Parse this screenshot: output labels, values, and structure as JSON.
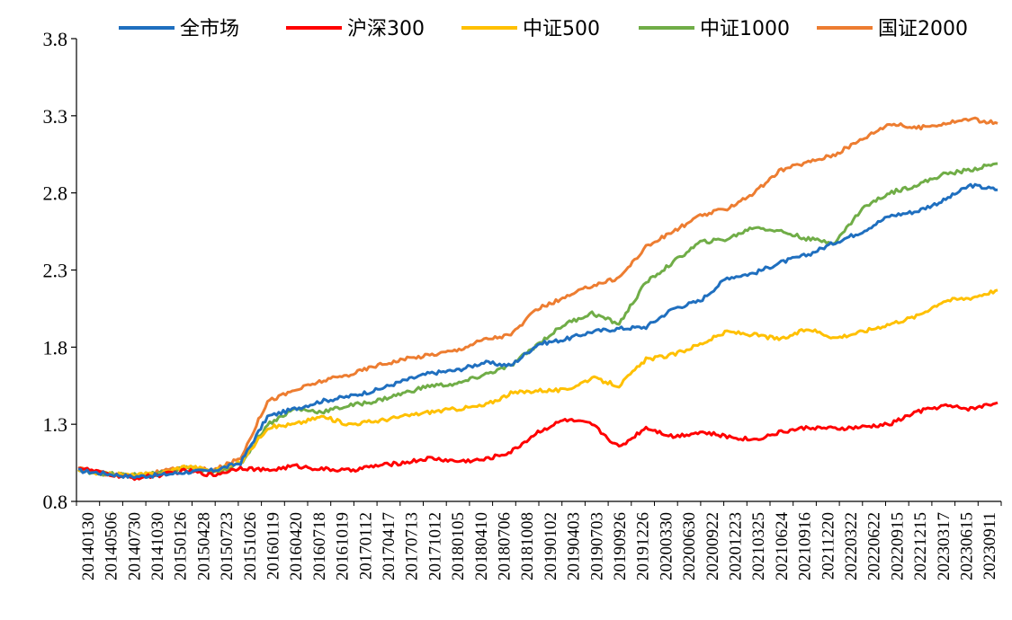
{
  "chart_data": {
    "type": "line",
    "title": "",
    "xlabel": "",
    "ylabel": "",
    "ylim": [
      0.8,
      3.8
    ],
    "yticks": [
      0.8,
      1.3,
      1.8,
      2.3,
      2.8,
      3.3,
      3.8
    ],
    "ytick_labels": [
      "0.8",
      "1.3",
      "1.8",
      "2.3",
      "2.8",
      "3.3",
      "3.8"
    ],
    "xticks": [
      "20140130",
      "20140506",
      "20140730",
      "20141030",
      "20150126",
      "20150428",
      "20150723",
      "20151026",
      "20160119",
      "20160420",
      "20160718",
      "20161019",
      "20170112",
      "20170417",
      "20170713",
      "20171012",
      "20180105",
      "20180410",
      "20180706",
      "20181008",
      "20190102",
      "20190403",
      "20190703",
      "20190926",
      "20191226",
      "20200330",
      "20200630",
      "20200922",
      "20201223",
      "20210325",
      "20210624",
      "20210916",
      "20211220",
      "20220322",
      "20220622",
      "20220915",
      "20221215",
      "20230317",
      "20230615",
      "20230911"
    ],
    "grid": false,
    "legend_position": "top",
    "series": [
      {
        "name": "全市场",
        "color": "#1F6FBF",
        "values": [
          1.0,
          0.98,
          0.96,
          0.97,
          0.99,
          1.0,
          1.05,
          1.35,
          1.4,
          1.45,
          1.48,
          1.52,
          1.58,
          1.63,
          1.65,
          1.7,
          1.68,
          1.82,
          1.85,
          1.9,
          1.92,
          1.93,
          2.05,
          2.1,
          2.25,
          2.28,
          2.35,
          2.4,
          2.48,
          2.55,
          2.65,
          2.68,
          2.75,
          2.85,
          2.82
        ]
      },
      {
        "name": "沪深300",
        "color": "#FF0000",
        "values": [
          1.02,
          0.98,
          0.95,
          0.97,
          1.0,
          0.97,
          1.02,
          1.0,
          1.03,
          1.01,
          1.0,
          1.03,
          1.05,
          1.08,
          1.06,
          1.07,
          1.12,
          1.25,
          1.33,
          1.3,
          1.15,
          1.28,
          1.22,
          1.25,
          1.22,
          1.2,
          1.25,
          1.28,
          1.27,
          1.28,
          1.3,
          1.38,
          1.42,
          1.4,
          1.44
        ]
      },
      {
        "name": "中证500",
        "color": "#FFC000",
        "values": [
          1.0,
          0.98,
          0.97,
          0.98,
          1.03,
          1.0,
          1.05,
          1.28,
          1.3,
          1.35,
          1.3,
          1.32,
          1.35,
          1.38,
          1.4,
          1.42,
          1.5,
          1.52,
          1.52,
          1.6,
          1.55,
          1.72,
          1.75,
          1.82,
          1.9,
          1.88,
          1.85,
          1.92,
          1.86,
          1.9,
          1.95,
          2.0,
          2.1,
          2.12,
          2.17
        ]
      },
      {
        "name": "中证1000",
        "color": "#70AD47",
        "values": [
          1.0,
          0.98,
          0.97,
          0.98,
          1.02,
          0.99,
          1.04,
          1.3,
          1.4,
          1.38,
          1.42,
          1.45,
          1.5,
          1.55,
          1.56,
          1.62,
          1.68,
          1.82,
          1.95,
          2.02,
          1.95,
          2.22,
          2.35,
          2.48,
          2.5,
          2.58,
          2.55,
          2.5,
          2.48,
          2.7,
          2.8,
          2.85,
          2.92,
          2.95,
          2.99
        ]
      },
      {
        "name": "国证2000",
        "color": "#ED7D31",
        "values": [
          1.01,
          0.98,
          0.97,
          0.99,
          1.02,
          1.0,
          1.08,
          1.45,
          1.52,
          1.58,
          1.62,
          1.68,
          1.72,
          1.75,
          1.78,
          1.85,
          1.88,
          2.05,
          2.12,
          2.2,
          2.25,
          2.45,
          2.55,
          2.65,
          2.7,
          2.8,
          2.95,
          3.0,
          3.05,
          3.15,
          3.25,
          3.22,
          3.25,
          3.28,
          3.25
        ]
      }
    ]
  }
}
